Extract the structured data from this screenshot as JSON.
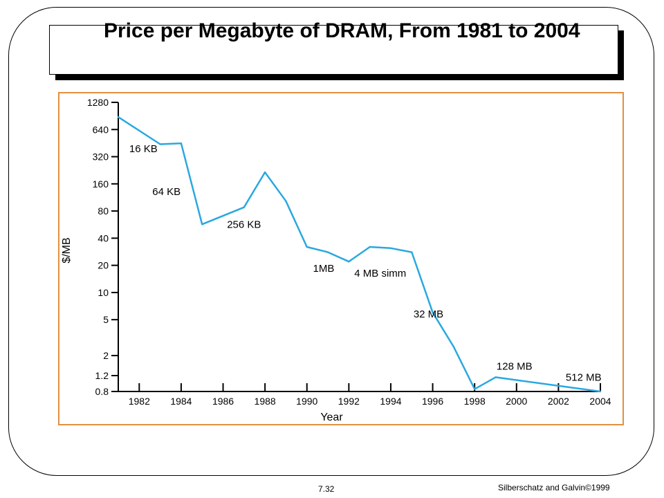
{
  "slide": {
    "title": "Price per Megabyte of DRAM, From 1981 to 2004",
    "page_number": "7.32",
    "credit": "Silberschatz and Galvin©1999"
  },
  "chart_data": {
    "type": "line",
    "title": "",
    "xlabel": "Year",
    "ylabel": "$/MB",
    "y_scale": "log",
    "xlim": [
      1981,
      2004
    ],
    "ylim": [
      0.8,
      1280
    ],
    "line_color": "#29a8e0",
    "x_ticks": [
      1982,
      1984,
      1986,
      1988,
      1990,
      1992,
      1994,
      1996,
      1998,
      2000,
      2002,
      2004
    ],
    "x_tick_labels": [
      "1982",
      "1984",
      "1986",
      "1988",
      "1990",
      "1992",
      "1994",
      "1996",
      "1998",
      "2000",
      "2002",
      "2004"
    ],
    "y_ticks": [
      0.8,
      1.2,
      2,
      5,
      10,
      20,
      40,
      80,
      160,
      320,
      640,
      1280
    ],
    "y_tick_labels": [
      "0.8",
      "1.2",
      "2",
      "5",
      "10",
      "20",
      "40",
      "80",
      "160",
      "320",
      "640",
      "1280"
    ],
    "series": [
      {
        "x": [
          1981,
          1983,
          1984,
          1985,
          1987,
          1988,
          1989,
          1990,
          1991,
          1992,
          1993,
          1994,
          1995,
          1996,
          1997,
          1998,
          1999,
          2004
        ],
        "y": [
          880,
          440,
          450,
          57,
          88,
          215,
          103,
          32,
          28,
          22,
          32,
          31,
          28,
          6,
          2.5,
          0.85,
          1.15,
          0.8
        ]
      }
    ],
    "annotations": [
      {
        "text": "16 KB",
        "x": 1982.2,
        "y": 360
      },
      {
        "text": "64 KB",
        "x": 1983.3,
        "y": 120
      },
      {
        "text": "256 KB",
        "x": 1987,
        "y": 52
      },
      {
        "text": "1MB",
        "x": 1990.8,
        "y": 17
      },
      {
        "text": "4 MB simm",
        "x": 1993.5,
        "y": 15
      },
      {
        "text": "32 MB",
        "x": 1995.8,
        "y": 5.3
      },
      {
        "text": "128 MB",
        "x": 1999.9,
        "y": 1.4
      },
      {
        "text": "512 MB",
        "x": 2003.2,
        "y": 1.05
      }
    ]
  }
}
